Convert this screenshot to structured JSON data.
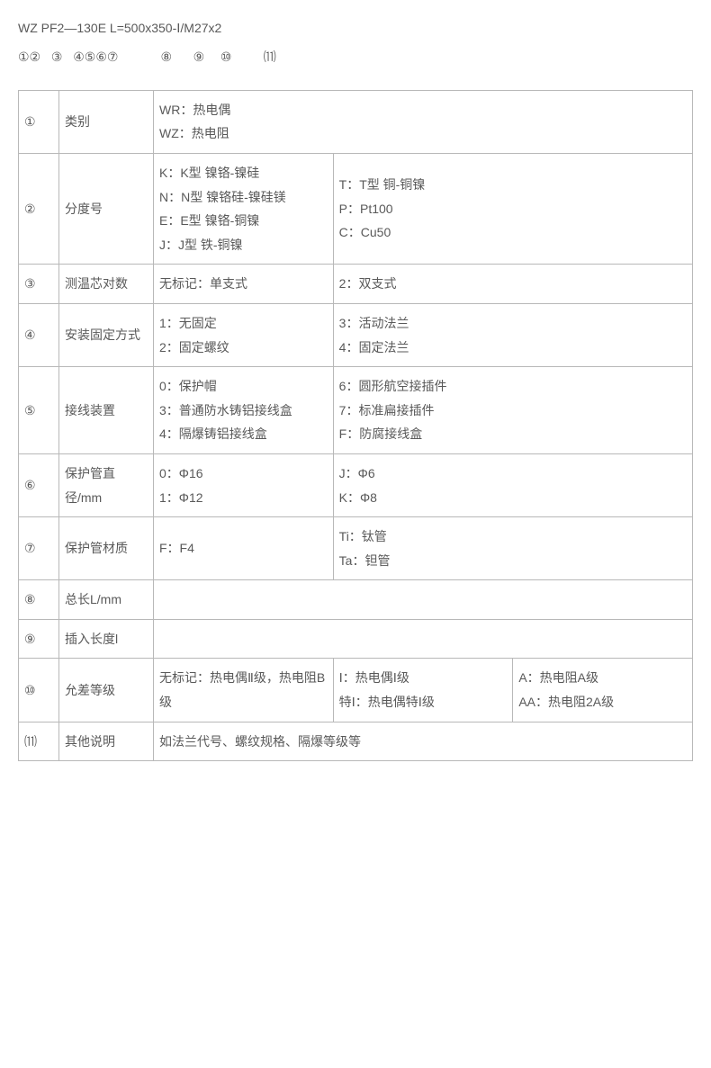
{
  "header": "WZ PF2—130E L=500x350-Ⅰ/M27x2",
  "markers": "①②  ③  ④⑤⑥⑦        ⑧    ⑨   ⑩      ⑾",
  "rows": {
    "r1": {
      "num": "①",
      "label": "类别",
      "c1a": "WR：热电偶",
      "c1b": "WZ：热电阻"
    },
    "r2": {
      "num": "②",
      "label": "分度号",
      "c1a": "K：K型 镍铬-镍硅",
      "c1b": "N：N型 镍铬硅-镍硅镁",
      "c1c": "E：E型 镍铬-铜镍",
      "c1d": "J：J型 铁-铜镍",
      "c2a": "T：T型 铜-铜镍",
      "c2b": "P：Pt100",
      "c2c": "C：Cu50"
    },
    "r3": {
      "num": "③",
      "label": "测温芯对数",
      "c1": "无标记：单支式",
      "c2": "2：双支式"
    },
    "r4": {
      "num": "④",
      "label": "安装固定方式",
      "c1a": "1：无固定",
      "c1b": "2：固定螺纹",
      "c2a": "3：活动法兰",
      "c2b": "4：固定法兰"
    },
    "r5": {
      "num": "⑤",
      "label": "接线装置",
      "c1a": "0：保护帽",
      "c1b": "3：普通防水铸铝接线盒",
      "c1c": "4：隔爆铸铝接线盒",
      "c2a": "6：圆形航空接插件",
      "c2b": "7：标准扁接插件",
      "c2c": "F：防腐接线盒"
    },
    "r6": {
      "num": "⑥",
      "label": "保护管直径/mm",
      "c1a": "0：Φ16",
      "c1b": "1：Φ12",
      "c2a": "J：Φ6",
      "c2b": "K：Φ8"
    },
    "r7": {
      "num": "⑦",
      "label": "保护管材质",
      "c1": "F：F4",
      "c2a": "Ti：钛管",
      "c2b": "Ta：钽管"
    },
    "r8": {
      "num": "⑧",
      "label": "总长L/mm",
      "c1": ""
    },
    "r9": {
      "num": "⑨",
      "label": "插入长度l",
      "c1": ""
    },
    "r10": {
      "num": "⑩",
      "label": "允差等级",
      "c1": "无标记：热电偶Ⅱ级，热电阻B级",
      "c2a": "Ⅰ：热电偶Ⅰ级",
      "c2b": "特Ⅰ：热电偶特Ⅰ级",
      "c3a": "A：热电阻A级",
      "c3b": "AA：热电阻2A级"
    },
    "r11": {
      "num": "⑾",
      "label": "其他说明",
      "c1": "如法兰代号、螺纹规格、隔爆等级等"
    }
  }
}
